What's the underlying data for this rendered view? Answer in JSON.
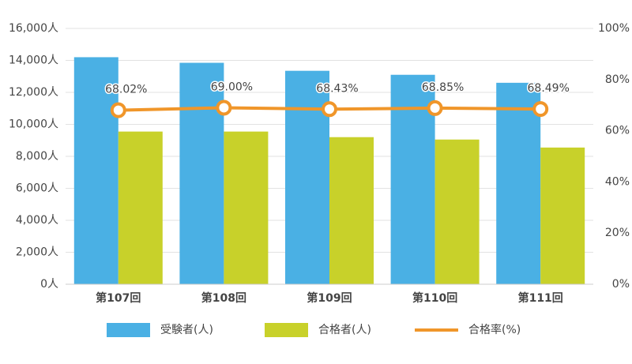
{
  "chart_data": {
    "type": "bar",
    "categories": [
      "第107回",
      "第108回",
      "第109回",
      "第110回",
      "第111回"
    ],
    "series": [
      {
        "name": "受験者(人)",
        "type": "bar",
        "color": "#4ab0e4",
        "values": [
          14200,
          13850,
          13350,
          13100,
          12600
        ]
      },
      {
        "name": "合格者(人)",
        "type": "bar",
        "color": "#c8d12a",
        "values": [
          9550,
          9550,
          9200,
          9050,
          8550
        ]
      },
      {
        "name": "合格率(%)",
        "type": "line",
        "axis": "y2",
        "color": "#f0962a",
        "values": [
          68.02,
          69.0,
          68.43,
          68.85,
          68.49
        ],
        "value_labels": [
          "68.02%",
          "69.00%",
          "68.43%",
          "68.85%",
          "68.49%"
        ]
      }
    ],
    "ylim": [
      0,
      16000
    ],
    "yticks": [
      {
        "value": 0,
        "label": "0人"
      },
      {
        "value": 2000,
        "label": "2,000人"
      },
      {
        "value": 4000,
        "label": "4,000人"
      },
      {
        "value": 6000,
        "label": "6,000人"
      },
      {
        "value": 8000,
        "label": "8,000人"
      },
      {
        "value": 10000,
        "label": "10,000人"
      },
      {
        "value": 12000,
        "label": "12,000人"
      },
      {
        "value": 14000,
        "label": "14,000人"
      },
      {
        "value": 16000,
        "label": "16,000人"
      }
    ],
    "y2lim": [
      0,
      100
    ],
    "y2ticks": [
      {
        "value": 0,
        "label": "0%"
      },
      {
        "value": 20,
        "label": "20%"
      },
      {
        "value": 40,
        "label": "40%"
      },
      {
        "value": 60,
        "label": "60%"
      },
      {
        "value": 80,
        "label": "80%"
      },
      {
        "value": 100,
        "label": "100%"
      }
    ],
    "grid": true,
    "legend": "bottom"
  }
}
